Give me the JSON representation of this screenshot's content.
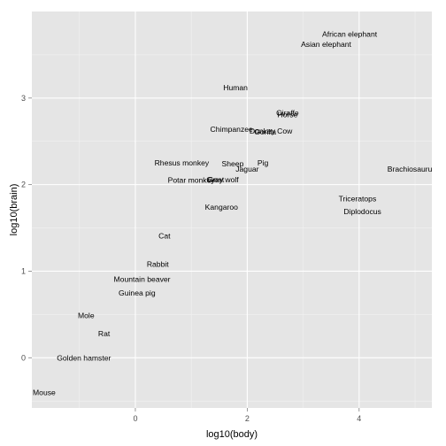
{
  "chart_data": {
    "type": "scatter",
    "xlabel": "log10(body)",
    "ylabel": "log10(brain)",
    "xlim": [
      -1.85,
      5.3
    ],
    "ylim": [
      -0.58,
      4.0
    ],
    "x_ticks": [
      0,
      2,
      4
    ],
    "y_ticks": [
      0,
      1,
      2,
      3
    ],
    "grid": true,
    "points": [
      {
        "label": "African elephant",
        "x": 3.83,
        "y": 3.74
      },
      {
        "label": "Asian elephant",
        "x": 3.41,
        "y": 3.62
      },
      {
        "label": "Human",
        "x": 1.79,
        "y": 3.12
      },
      {
        "label": "Giraffe",
        "x": 2.72,
        "y": 2.83
      },
      {
        "label": "Horse",
        "x": 2.72,
        "y": 2.81
      },
      {
        "label": "Chimpanzee",
        "x": 1.72,
        "y": 2.64
      },
      {
        "label": "Gorilla",
        "x": 2.32,
        "y": 2.61
      },
      {
        "label": "Donkey",
        "x": 2.27,
        "y": 2.62
      },
      {
        "label": "Cow",
        "x": 2.67,
        "y": 2.62
      },
      {
        "label": "Rhesus monkey",
        "x": 0.83,
        "y": 2.25
      },
      {
        "label": "Sheep",
        "x": 1.74,
        "y": 2.24
      },
      {
        "label": "Pig",
        "x": 2.28,
        "y": 2.25
      },
      {
        "label": "Jaguar",
        "x": 2.0,
        "y": 2.18
      },
      {
        "label": "Brachiosaurus",
        "x": 4.94,
        "y": 2.18
      },
      {
        "label": "Potar monkey",
        "x": 1.0,
        "y": 2.05
      },
      {
        "label": "Goat",
        "x": 1.44,
        "y": 2.06
      },
      {
        "label": "Grey wolf",
        "x": 1.56,
        "y": 2.06
      },
      {
        "label": "Kangaroo",
        "x": 1.54,
        "y": 1.74
      },
      {
        "label": "Triceratops",
        "x": 3.97,
        "y": 1.84
      },
      {
        "label": "Diplodocus",
        "x": 4.06,
        "y": 1.69
      },
      {
        "label": "Cat",
        "x": 0.52,
        "y": 1.41
      },
      {
        "label": "Rabbit",
        "x": 0.4,
        "y": 1.08
      },
      {
        "label": "Mountain beaver",
        "x": 0.12,
        "y": 0.91
      },
      {
        "label": "Guinea pig",
        "x": 0.03,
        "y": 0.75
      },
      {
        "label": "Mole",
        "x": -0.88,
        "y": 0.49
      },
      {
        "label": "Rat",
        "x": -0.56,
        "y": 0.28
      },
      {
        "label": "Golden hamster",
        "x": -0.92,
        "y": 0.0
      },
      {
        "label": "Mouse",
        "x": -1.63,
        "y": -0.4
      }
    ]
  }
}
